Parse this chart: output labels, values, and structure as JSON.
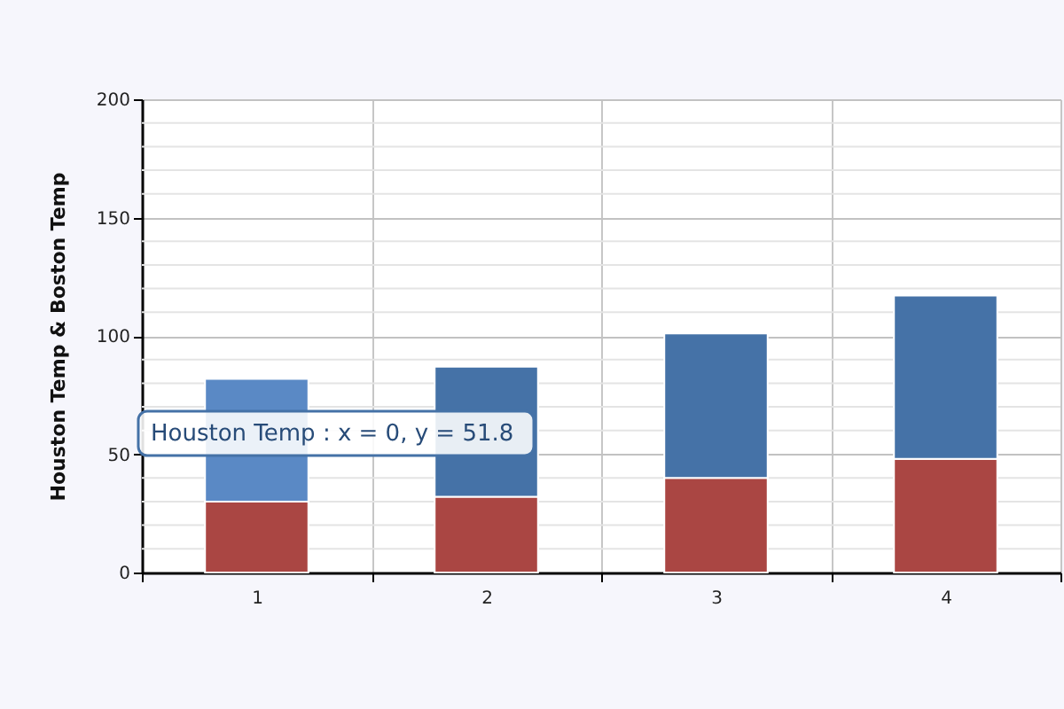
{
  "chart_data": {
    "type": "bar",
    "stacked": true,
    "ylabel": "Houston Temp & Boston Temp",
    "categories": [
      "1",
      "2",
      "3",
      "4"
    ],
    "series": [
      {
        "color": "#aa4643",
        "values": [
          30,
          32,
          40,
          48
        ]
      },
      {
        "colors": [
          "#5a89c5",
          "#4572a7",
          "#4572a7",
          "#4572a7"
        ],
        "values": [
          51.8,
          55,
          61,
          69
        ]
      }
    ],
    "ylim": [
      0,
      200
    ],
    "yticks": [
      0,
      {
        "value": 10,
        "label": null
      },
      {
        "value": 20,
        "label": null
      },
      {
        "value": 30,
        "label": null
      },
      {
        "value": 40,
        "label": null
      },
      50,
      {
        "value": 60,
        "label": null
      },
      {
        "value": 70,
        "label": null
      },
      {
        "value": 80,
        "label": null
      },
      {
        "value": 90,
        "label": null
      },
      100,
      {
        "value": 110,
        "label": null
      },
      {
        "value": 120,
        "label": null
      },
      {
        "value": 130,
        "label": null
      },
      {
        "value": 140,
        "label": null
      },
      150,
      {
        "value": 160,
        "label": null
      },
      {
        "value": 170,
        "label": null
      },
      {
        "value": 180,
        "label": null
      },
      {
        "value": 190,
        "label": null
      },
      200
    ],
    "grid": true,
    "annotations": [
      "Houston Temp : x = 0, y = 51.8"
    ]
  }
}
